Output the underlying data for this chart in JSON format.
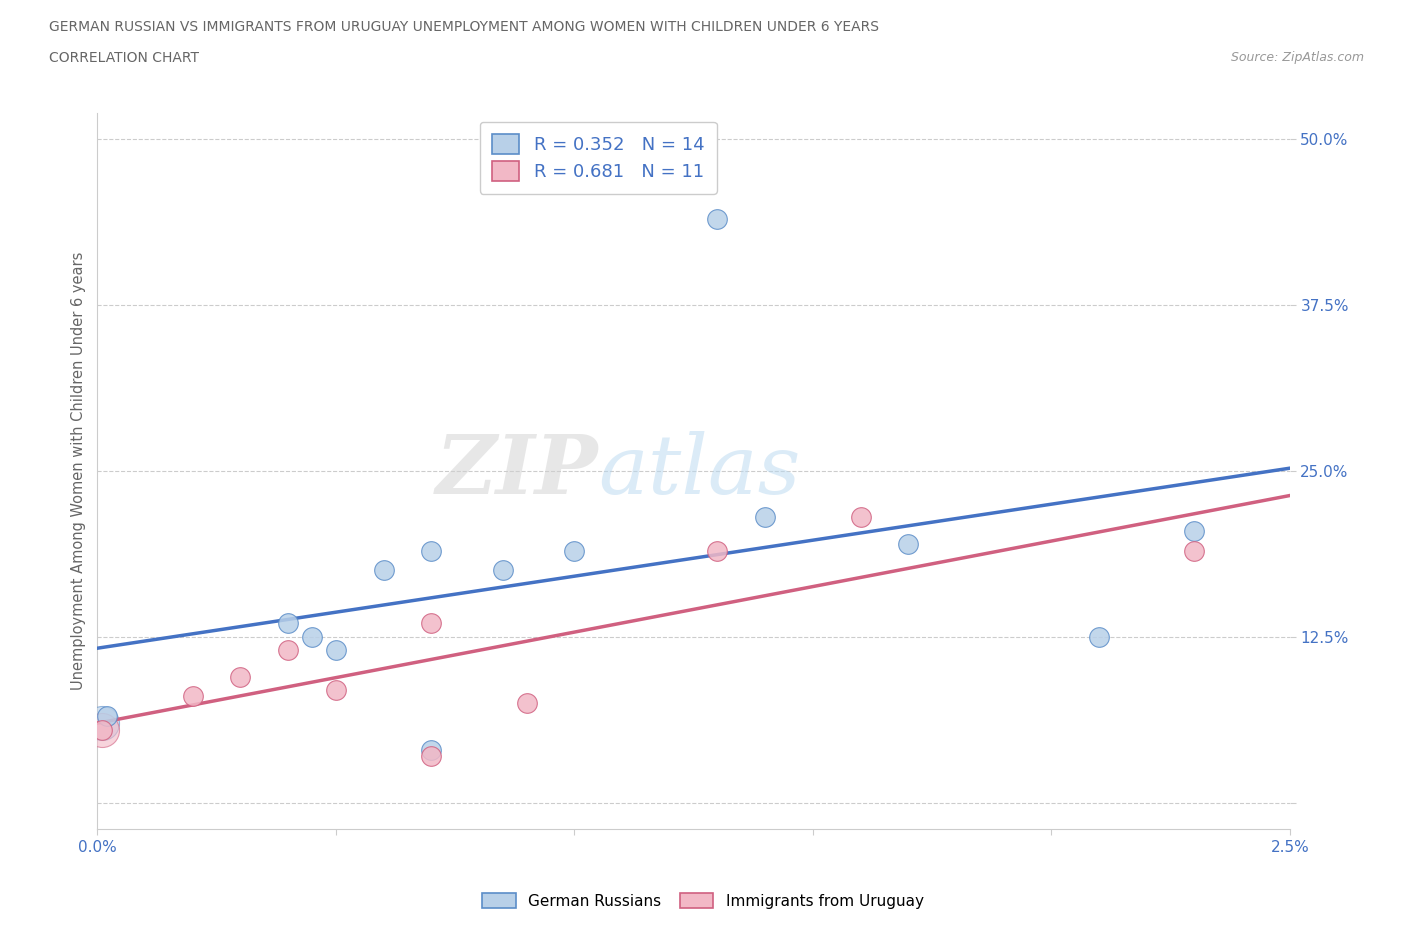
{
  "title_line1": "GERMAN RUSSIAN VS IMMIGRANTS FROM URUGUAY UNEMPLOYMENT AMONG WOMEN WITH CHILDREN UNDER 6 YEARS",
  "title_line2": "CORRELATION CHART",
  "source": "Source: ZipAtlas.com",
  "ylabel": "Unemployment Among Women with Children Under 6 years",
  "xlim": [
    0.0,
    0.025
  ],
  "ylim": [
    -0.02,
    0.52
  ],
  "ylim_display": [
    0.0,
    0.5
  ],
  "xticks": [
    0.0,
    0.005,
    0.01,
    0.015,
    0.02,
    0.025
  ],
  "xtick_labels": [
    "0.0%",
    "",
    "",
    "",
    "",
    "2.5%"
  ],
  "yticks": [
    0.0,
    0.125,
    0.25,
    0.375,
    0.5
  ],
  "ytick_labels": [
    "",
    "12.5%",
    "25.0%",
    "37.5%",
    "50.0%"
  ],
  "german_russian_x": [
    0.0002,
    0.004,
    0.0045,
    0.005,
    0.006,
    0.007,
    0.007,
    0.0085,
    0.01,
    0.013,
    0.014,
    0.017,
    0.021,
    0.023
  ],
  "german_russian_y": [
    0.065,
    0.135,
    0.125,
    0.115,
    0.175,
    0.19,
    0.04,
    0.175,
    0.19,
    0.44,
    0.215,
    0.195,
    0.125,
    0.205
  ],
  "uruguay_x": [
    0.0001,
    0.002,
    0.003,
    0.004,
    0.005,
    0.007,
    0.007,
    0.009,
    0.013,
    0.016,
    0.023
  ],
  "uruguay_y": [
    0.055,
    0.08,
    0.095,
    0.115,
    0.085,
    0.035,
    0.135,
    0.075,
    0.19,
    0.215,
    0.19
  ],
  "german_russian_fill": "#b8d0e8",
  "german_russian_edge": "#5b8dc8",
  "uruguay_fill": "#f2b8c6",
  "uruguay_edge": "#d06080",
  "german_russian_line_color": "#4472c4",
  "uruguay_line_color": "#d06080",
  "R_german": "0.352",
  "N_german": "14",
  "R_uruguay": "0.681",
  "N_uruguay": "11",
  "watermark_zip": "ZIP",
  "watermark_atlas": "atlas",
  "background_color": "#ffffff",
  "grid_color": "#cccccc",
  "title_color": "#666666",
  "ytick_color": "#4472c4",
  "xtick_color": "#4472c4",
  "source_color": "#999999",
  "legend_text_color": "#4472c4"
}
